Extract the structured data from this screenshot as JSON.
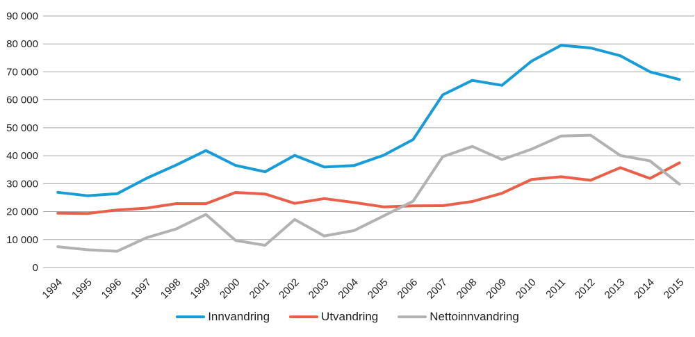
{
  "chart_data": {
    "type": "line",
    "title": "",
    "xlabel": "",
    "ylabel": "",
    "x": [
      "1994",
      "1995",
      "1996",
      "1997",
      "1998",
      "1999",
      "2000",
      "2001",
      "2002",
      "2003",
      "2004",
      "2005",
      "2006",
      "2007",
      "2008",
      "2009",
      "2010",
      "2011",
      "2012",
      "2013",
      "2014",
      "2015"
    ],
    "series": [
      {
        "name": "Innvandring",
        "color": "#179cd8",
        "values": [
          26911,
          25678,
          26407,
          31957,
          36704,
          41841,
          36542,
          34264,
          40122,
          35957,
          36482,
          40148,
          45776,
          61774,
          66961,
          65186,
          73852,
          79498,
          78570,
          75789,
          70030,
          67276
        ]
      },
      {
        "name": "Utvandring",
        "color": "#e8604a",
        "values": [
          19475,
          19312,
          20590,
          21257,
          22881,
          22842,
          26854,
          26309,
          22948,
          24672,
          23271,
          21709,
          22053,
          22122,
          23615,
          26549,
          31506,
          32466,
          31227,
          35716,
          31875,
          37474
        ]
      },
      {
        "name": "Nettoinnvandring",
        "color": "#b2b2b2",
        "values": [
          7436,
          6366,
          5817,
          10700,
          13823,
          18999,
          9688,
          7955,
          17174,
          11285,
          13211,
          18439,
          23723,
          39652,
          43346,
          38637,
          42346,
          47032,
          47343,
          40073,
          38155,
          29802
        ]
      }
    ],
    "ylim": [
      0,
      90000
    ],
    "ytick_step": 10000,
    "ytick_labels": [
      "0",
      "10 000",
      "20 000",
      "30 000",
      "40 000",
      "50 000",
      "60 000",
      "70 000",
      "80 000",
      "90 000"
    ],
    "grid": "horizontal",
    "gridline_color": "#a6a6a6",
    "tick_label_color": "#1f1f1f",
    "legend_position": "bottom"
  }
}
